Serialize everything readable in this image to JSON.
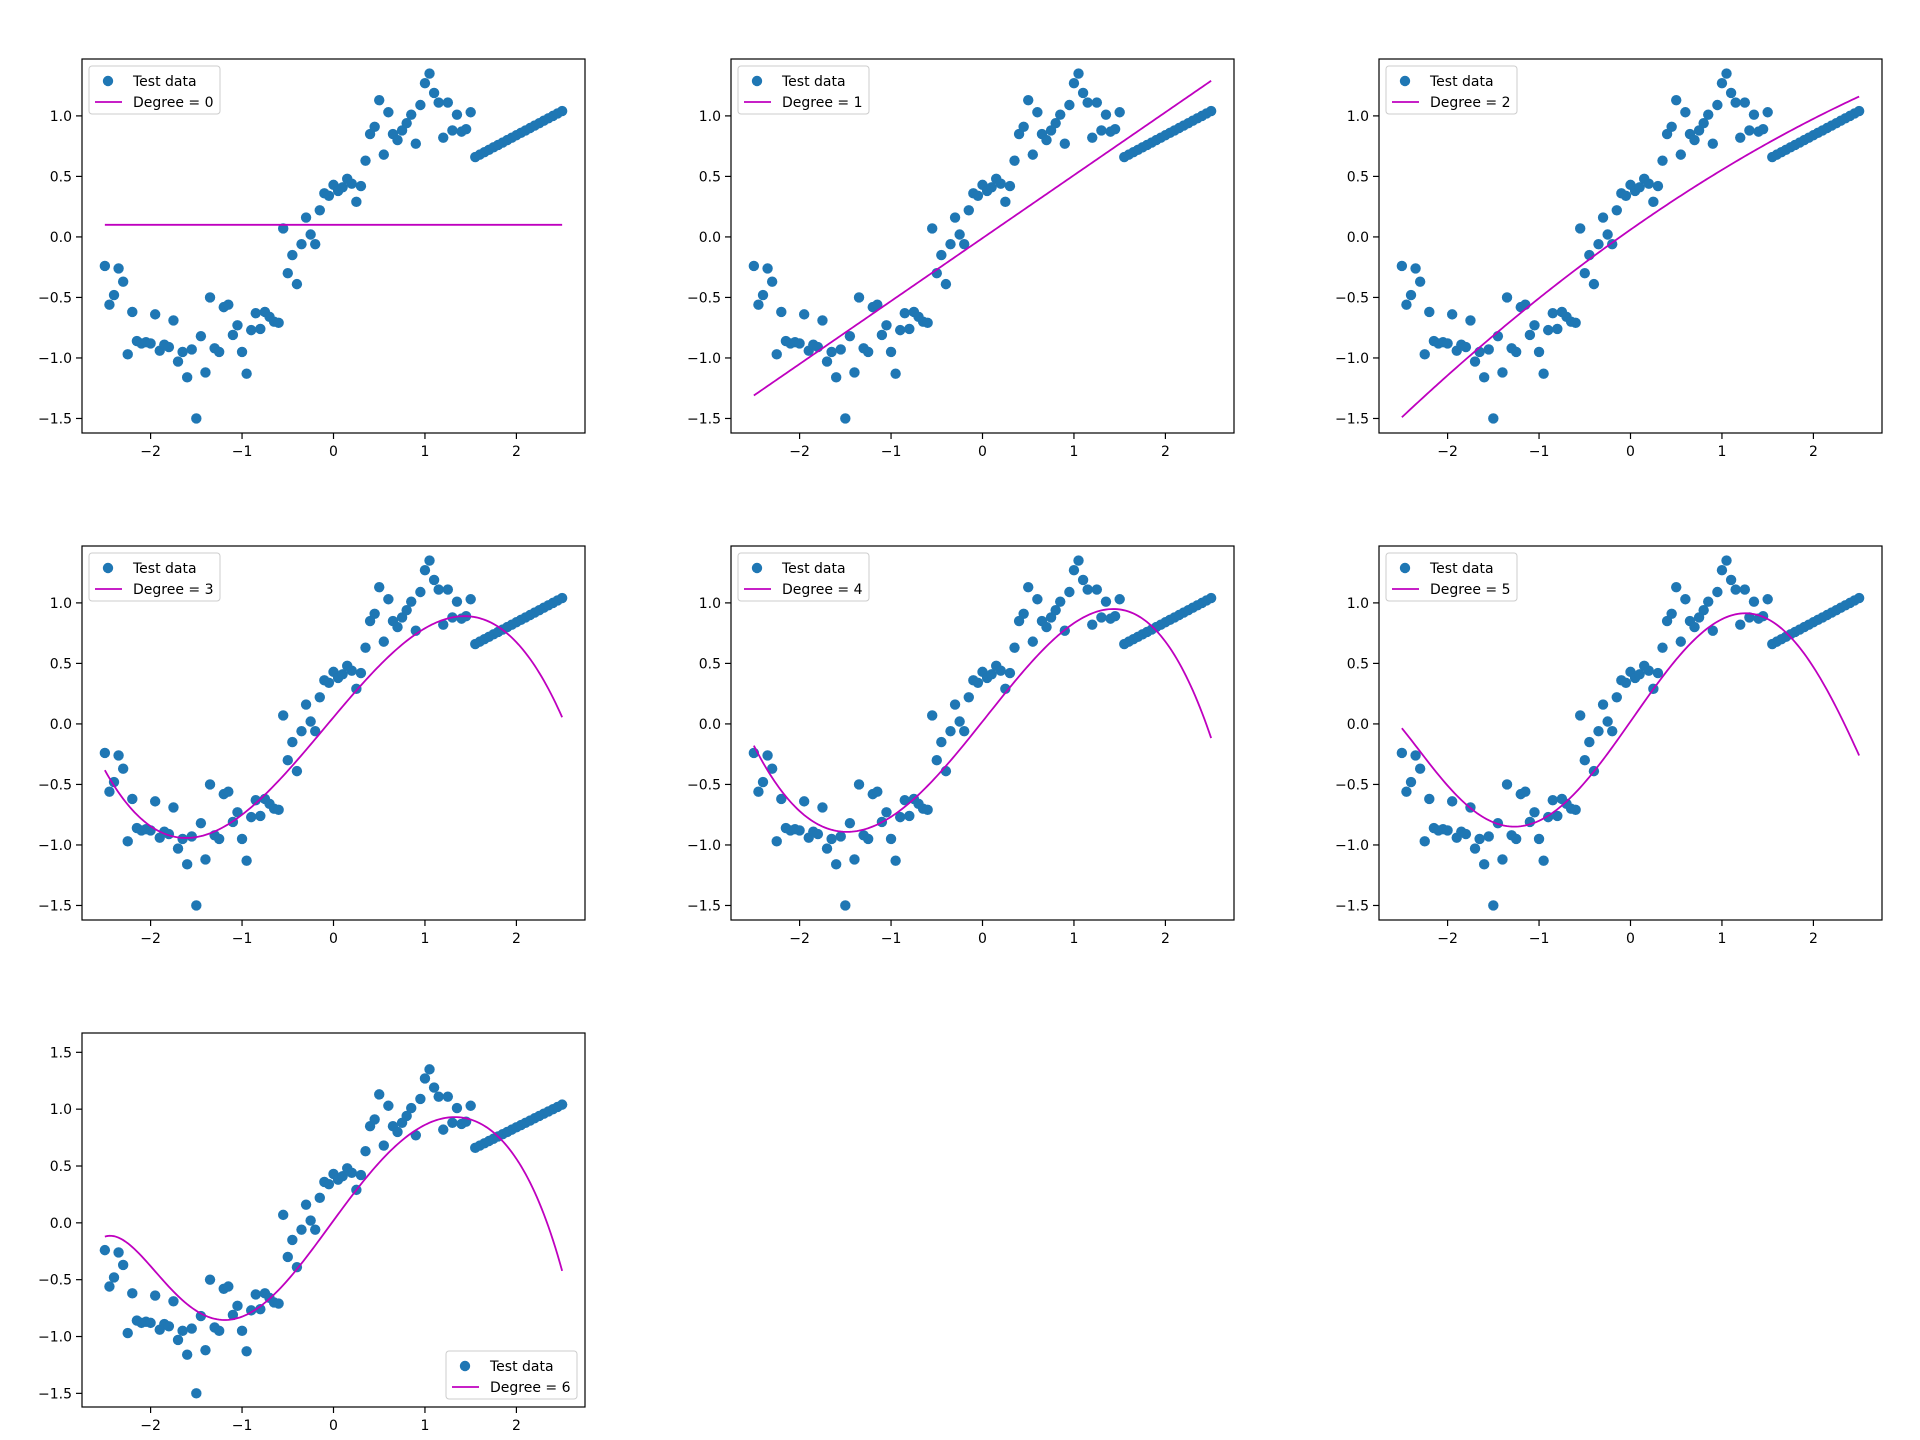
{
  "figure": {
    "background": "#ffffff"
  },
  "style": {
    "scatter_color": "#1f77b4",
    "line_color": "#bf00bf",
    "axis_color": "#000000"
  },
  "test_data": {
    "x": [
      -2.5,
      -2.45,
      -2.4,
      -2.35,
      -2.3,
      -2.25,
      -2.2,
      -2.15,
      -2.1,
      -2.05,
      -2.0,
      -1.95,
      -1.9,
      -1.85,
      -1.8,
      -1.75,
      -1.7,
      -1.65,
      -1.6,
      -1.55,
      -1.5,
      -1.45,
      -1.4,
      -1.35,
      -1.3,
      -1.25,
      -1.2,
      -1.15,
      -1.1,
      -1.05,
      -1.0,
      -0.95,
      -0.9,
      -0.85,
      -0.8,
      -0.75,
      -0.7,
      -0.65,
      -0.6,
      -0.55,
      -0.5,
      -0.45,
      -0.4,
      -0.35,
      -0.3,
      -0.25,
      -0.2,
      -0.15,
      -0.1,
      -0.05,
      0.0,
      0.05,
      0.1,
      0.15,
      0.2,
      0.25,
      0.3,
      0.35,
      0.4,
      0.45,
      0.5,
      0.55,
      0.6,
      0.65,
      0.7,
      0.75,
      0.8,
      0.85,
      0.9,
      0.95,
      1.0,
      1.05,
      1.1,
      1.15,
      1.2,
      1.25,
      1.3,
      1.35,
      1.4,
      1.45,
      1.5,
      1.55,
      1.6,
      1.65,
      1.7,
      1.75,
      1.8,
      1.85,
      1.9,
      1.95,
      2.0,
      2.05,
      2.1,
      2.15,
      2.2,
      2.25,
      2.3,
      2.35,
      2.4,
      2.45,
      2.5
    ],
    "y": [
      -0.24,
      -0.56,
      -0.48,
      -0.26,
      -0.37,
      -0.97,
      -0.62,
      -0.86,
      -0.88,
      -0.87,
      -0.88,
      -0.64,
      -0.94,
      -0.89,
      -0.91,
      -0.69,
      -1.03,
      -0.95,
      -1.16,
      -0.93,
      -1.5,
      -0.82,
      -1.12,
      -0.5,
      -0.92,
      -0.95,
      -0.58,
      -0.56,
      -0.81,
      -0.73,
      -0.95,
      -1.13,
      -0.77,
      -0.63,
      -0.76,
      -0.62,
      -0.66,
      -0.7,
      -0.71,
      0.07,
      -0.3,
      -0.15,
      -0.39,
      -0.06,
      0.16,
      0.02,
      -0.06,
      0.22,
      0.36,
      0.34,
      0.43,
      0.38,
      0.41,
      0.48,
      0.44,
      0.29,
      0.42,
      0.63,
      0.85,
      0.91,
      1.13,
      0.68,
      1.03,
      0.85,
      0.8,
      0.88,
      0.94,
      1.01,
      0.77,
      1.09,
      1.27,
      1.35,
      1.19,
      1.11,
      0.82,
      1.11,
      0.88,
      1.01,
      0.87,
      0.89,
      1.03,
      0.66,
      0.68,
      0.7,
      0.72,
      0.74,
      0.76,
      0.78,
      0.8,
      0.82,
      0.84,
      0.86,
      0.88,
      0.9,
      0.92,
      0.94,
      0.96,
      0.98,
      1.0,
      1.02,
      1.04
    ]
  },
  "chart_data": [
    {
      "type": "scatter",
      "xlim": [
        -2.75,
        2.75
      ],
      "ylim": [
        -1.62,
        1.47
      ],
      "xticks": [
        "−2",
        "−1",
        "0",
        "1",
        "2"
      ],
      "xtick_values": [
        -2,
        -1,
        0,
        1,
        2
      ],
      "yticks": [
        "−1.5",
        "−1.0",
        "−0.5",
        "0.0",
        "0.5",
        "1.0"
      ],
      "ytick_values": [
        -1.5,
        -1.0,
        -0.5,
        0.0,
        0.5,
        1.0
      ],
      "legend_position": "top-left",
      "series": [
        {
          "name": "Test data",
          "kind": "scatter"
        },
        {
          "name": "Degree = 0",
          "kind": "line",
          "coefficients": [
            0.1
          ]
        }
      ]
    },
    {
      "type": "scatter",
      "xlim": [
        -2.75,
        2.75
      ],
      "ylim": [
        -1.62,
        1.47
      ],
      "xticks": [
        "−2",
        "−1",
        "0",
        "1",
        "2"
      ],
      "xtick_values": [
        -2,
        -1,
        0,
        1,
        2
      ],
      "yticks": [
        "−1.5",
        "−1.0",
        "−0.5",
        "0.0",
        "0.5",
        "1.0"
      ],
      "ytick_values": [
        -1.5,
        -1.0,
        -0.5,
        0.0,
        0.5,
        1.0
      ],
      "legend_position": "top-left",
      "series": [
        {
          "name": "Test data",
          "kind": "scatter"
        },
        {
          "name": "Degree = 1",
          "kind": "line",
          "coefficients": [
            -0.01,
            0.52
          ]
        }
      ]
    },
    {
      "type": "scatter",
      "xlim": [
        -2.75,
        2.75
      ],
      "ylim": [
        -1.62,
        1.47
      ],
      "xticks": [
        "−2",
        "−1",
        "0",
        "1",
        "2"
      ],
      "xtick_values": [
        -2,
        -1,
        0,
        1,
        2
      ],
      "yticks": [
        "−1.5",
        "−1.0",
        "−0.5",
        "0.0",
        "0.5",
        "1.0"
      ],
      "ytick_values": [
        -1.5,
        -1.0,
        -0.5,
        0.0,
        0.5,
        1.0
      ],
      "legend_position": "top-left",
      "series": [
        {
          "name": "Test data",
          "kind": "scatter"
        },
        {
          "name": "Degree = 2",
          "kind": "line",
          "coefficients": [
            0.06,
            0.53,
            -0.036
          ]
        }
      ]
    },
    {
      "type": "scatter",
      "xlim": [
        -2.75,
        2.75
      ],
      "ylim": [
        -1.62,
        1.47
      ],
      "xticks": [
        "−2",
        "−1",
        "0",
        "1",
        "2"
      ],
      "xtick_values": [
        -2,
        -1,
        0,
        1,
        2
      ],
      "yticks": [
        "−1.5",
        "−1.0",
        "−0.5",
        "0.0",
        "0.5",
        "1.0"
      ],
      "ytick_values": [
        -1.5,
        -1.0,
        -0.5,
        0.0,
        0.5,
        1.0
      ],
      "legend_position": "top-left",
      "series": [
        {
          "name": "Test data",
          "kind": "scatter"
        },
        {
          "name": "Degree = 3",
          "kind": "line",
          "coefficients": [
            0.055,
            0.9,
            -0.035,
            -0.13
          ]
        }
      ]
    },
    {
      "type": "scatter",
      "xlim": [
        -2.75,
        2.75
      ],
      "ylim": [
        -1.62,
        1.47
      ],
      "xticks": [
        "−2",
        "−1",
        "0",
        "1",
        "2"
      ],
      "xtick_values": [
        -2,
        -1,
        0,
        1,
        2
      ],
      "yticks": [
        "−1.5",
        "−1.0",
        "−0.5",
        "0.0",
        "0.5",
        "1.0"
      ],
      "ytick_values": [
        -1.5,
        -1.0,
        -0.5,
        0.0,
        0.5,
        1.0
      ],
      "legend_position": "top-left",
      "series": [
        {
          "name": "Test data",
          "kind": "scatter"
        },
        {
          "name": "Degree = 4",
          "kind": "line",
          "coefficients": [
            0.02,
            0.95,
            0.02,
            -0.15,
            -0.0075
          ]
        }
      ]
    },
    {
      "type": "scatter",
      "xlim": [
        -2.75,
        2.75
      ],
      "ylim": [
        -1.62,
        1.47
      ],
      "xticks": [
        "−2",
        "−1",
        "0",
        "1",
        "2"
      ],
      "xtick_values": [
        -2,
        -1,
        0,
        1,
        2
      ],
      "yticks": [
        "−1.5",
        "−1.0",
        "−0.5",
        "0.0",
        "0.5",
        "1.0"
      ],
      "ytick_values": [
        -1.5,
        -1.0,
        -0.5,
        0.0,
        0.5,
        1.0
      ],
      "legend_position": "top-left",
      "series": [
        {
          "name": "Test data",
          "kind": "scatter"
        },
        {
          "name": "Degree = 5",
          "kind": "line",
          "coefficients": [
            0.02,
            1.08,
            0.02,
            -0.26,
            -0.0075,
            0.0128
          ]
        }
      ]
    },
    {
      "type": "scatter",
      "xlim": [
        -2.75,
        2.75
      ],
      "ylim": [
        -1.62,
        1.67
      ],
      "xticks": [
        "−2",
        "−1",
        "0",
        "1",
        "2"
      ],
      "xtick_values": [
        -2,
        -1,
        0,
        1,
        2
      ],
      "yticks": [
        "−1.5",
        "−1.0",
        "−0.5",
        "0.0",
        "0.5",
        "1.0",
        "1.5"
      ],
      "ytick_values": [
        -1.5,
        -1.0,
        -0.5,
        0.0,
        0.5,
        1.0,
        1.5
      ],
      "legend_position": "bottom-right",
      "series": [
        {
          "name": "Test data",
          "kind": "scatter"
        },
        {
          "name": "Degree = 6",
          "kind": "line",
          "coefficients": [
            0.02,
            1.1,
            -0.035,
            -0.27,
            0.04,
            0.0135,
            -0.0067
          ]
        }
      ]
    }
  ]
}
